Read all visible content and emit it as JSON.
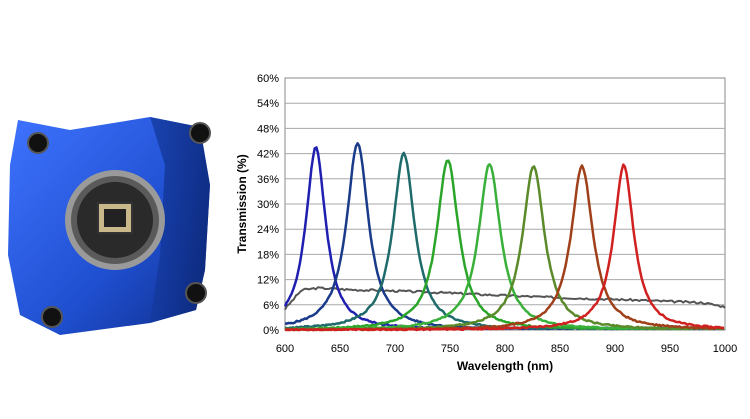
{
  "image": {
    "camera_icon": "blue-industrial-camera-icon",
    "camera_color": "#1f4fd0"
  },
  "chart_data": {
    "type": "line",
    "title": "",
    "xlabel": "Wavelength (nm)",
    "ylabel": "Transmission (%)",
    "xlim": [
      600,
      1000
    ],
    "ylim": [
      0,
      60
    ],
    "xticks": [
      "600",
      "650",
      "700",
      "750",
      "800",
      "850",
      "900",
      "950",
      "1000"
    ],
    "yticks": [
      "0%",
      "6%",
      "12%",
      "18%",
      "24%",
      "30%",
      "36%",
      "42%",
      "48%",
      "54%",
      "60%"
    ],
    "grid": "horizontal",
    "series": [
      {
        "color": "#555555",
        "kind": "broadband",
        "x": [
          600,
          615,
          630,
          660,
          700,
          750,
          800,
          850,
          900,
          950,
          980,
          1000
        ],
        "y": [
          5,
          9.5,
          10,
          9.6,
          9.3,
          8.8,
          8.2,
          7.7,
          7.3,
          6.8,
          6.5,
          5.5
        ]
      },
      {
        "color": "#1f1fb0",
        "center": 628,
        "peak": 43.5,
        "fwhm": 22
      },
      {
        "color": "#1a3a8a",
        "center": 666,
        "peak": 44.5,
        "fwhm": 24
      },
      {
        "color": "#1f6a6a",
        "center": 708,
        "peak": 42,
        "fwhm": 24
      },
      {
        "color": "#2aa52a",
        "center": 748,
        "peak": 40.5,
        "fwhm": 24
      },
      {
        "color": "#39b039",
        "center": 786,
        "peak": 39.5,
        "fwhm": 24
      },
      {
        "color": "#5a8a2a",
        "center": 826,
        "peak": 39,
        "fwhm": 24
      },
      {
        "color": "#a0401a",
        "center": 870,
        "peak": 39,
        "fwhm": 24
      },
      {
        "color": "#d02020",
        "center": 908,
        "peak": 39.3,
        "fwhm": 22
      }
    ]
  }
}
